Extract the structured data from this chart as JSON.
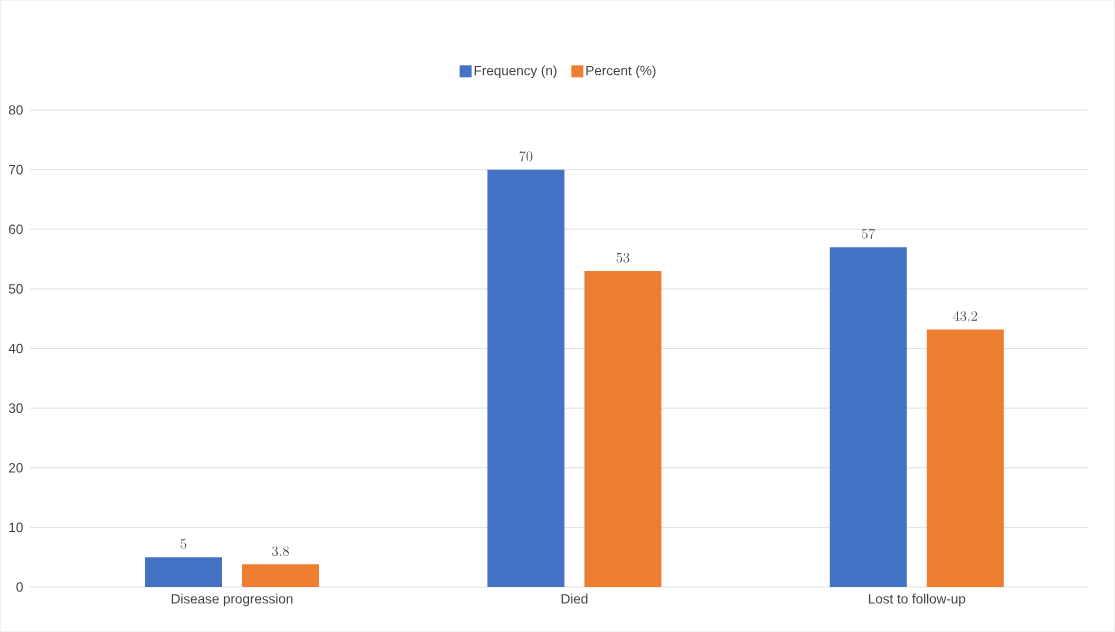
{
  "chart_data": {
    "type": "bar",
    "categories": [
      "Disease progression",
      "Died",
      "Lost to follow-up"
    ],
    "series": [
      {
        "name": "Frequency (n)",
        "color": "#4472c4",
        "values": [
          5,
          70,
          57
        ]
      },
      {
        "name": "Percent (%)",
        "color": "#ed7d31",
        "values": [
          3.8,
          53,
          43.2
        ]
      }
    ],
    "ylim": [
      0,
      80
    ],
    "yticks": [
      0,
      10,
      20,
      30,
      40,
      50,
      60,
      70,
      80
    ],
    "grid": "y",
    "legend": "top",
    "data_labels": true
  }
}
